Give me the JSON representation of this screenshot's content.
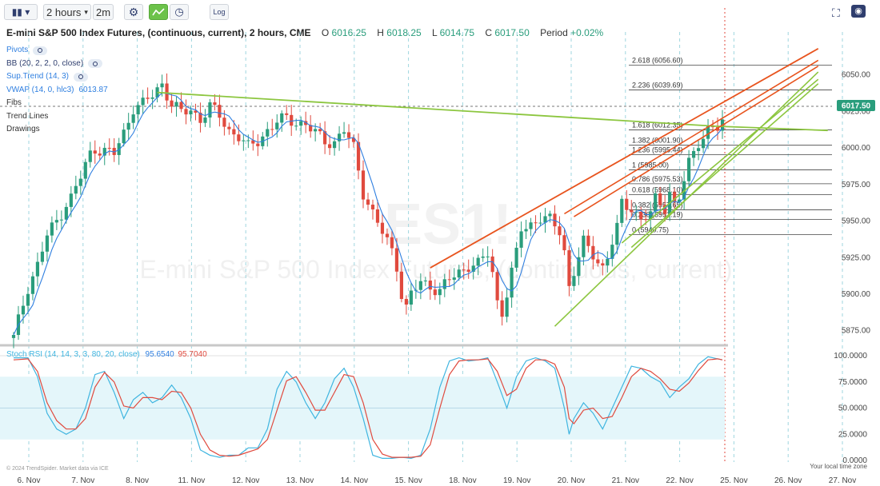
{
  "toolbar": {
    "bars_icon": "candlestick-bars-icon",
    "timeframe": "2 hours",
    "interval": "2m",
    "log_label": "Log"
  },
  "header": {
    "title": "E-mini S&P 500 Index Futures, (continuous, current), 2 hours, CME",
    "open_label": "O",
    "open": "6016.25",
    "high_label": "H",
    "high": "6018.25",
    "low_label": "L",
    "low": "6014.75",
    "close_label": "C",
    "close": "6017.50",
    "period_label": "Period",
    "period": "+0.02%"
  },
  "legend": {
    "pivots": "Pivots",
    "bb": "BB (20, 2, 2, 0, close)",
    "suptrend": "Sup.Trend (14, 3)",
    "vwap": "VWAP (14, 0, hlc3)",
    "vwap_value": "6013.87",
    "fibs": "Fibs",
    "trend_lines": "Trend Lines",
    "drawings": "Drawings"
  },
  "watermark": {
    "symbol": "ES1!",
    "name": "E-mini S&P 500 Index Futures, (continuous, current)"
  },
  "colors": {
    "up": "#2a9d7c",
    "down": "#e04a3e",
    "ma": "#2f7fe0",
    "fib": "#444444",
    "orange": "#e8541e",
    "green": "#8cc63f",
    "stoch_k": "#3fb5e0",
    "stoch_d": "#e04a3e",
    "last_price_bg": "#2a9d7c"
  },
  "rsi": {
    "label": "Stoch RSI (14, 14, 3, 3, 80, 20, close)",
    "k_value": "95.6540",
    "d_value": "95.7040",
    "ticks": [
      "100.0000",
      "75.0000",
      "50.0000",
      "25.0000",
      "0.0000"
    ]
  },
  "footer": {
    "copyright": "© 2024 TrendSpider. Market data via ICE",
    "timezone": "Your local time zone"
  },
  "chart_data": {
    "type": "candlestick",
    "y_ticks": [
      "6050.00",
      "6025.00",
      "6000.00",
      "5975.00",
      "5950.00",
      "5925.00",
      "5900.00",
      "5875.00"
    ],
    "ylim": [
      5865,
      6075
    ],
    "last_price": "6017.50",
    "x_labels": [
      "6. Nov",
      "7. Nov",
      "8. Nov",
      "11. Nov",
      "12. Nov",
      "13. Nov",
      "14. Nov",
      "15. Nov",
      "18. Nov",
      "19. Nov",
      "20. Nov",
      "21. Nov",
      "22. Nov",
      "25. Nov",
      "26. Nov",
      "27. Nov"
    ],
    "fib_levels": [
      {
        "label": "2.618 (6056.60)",
        "price": 6056.6
      },
      {
        "label": "2.236 (6039.69)",
        "price": 6039.69
      },
      {
        "label": "1.618 (6012.35)",
        "price": 6012.35
      },
      {
        "label": "1.382 (6001.90)",
        "price": 6001.9
      },
      {
        "label": "1.236 (5995.44)",
        "price": 5995.44
      },
      {
        "label": "1 (5985.00)",
        "price": 5985.0
      },
      {
        "label": "0.786 (5975.53)",
        "price": 5975.53
      },
      {
        "label": "0.618 (5968.10)",
        "price": 5968.1
      },
      {
        "label": "0.382 (5957.65)",
        "price": 5957.65
      },
      {
        "label": "0.236 (5951.19)",
        "price": 5951.19
      },
      {
        "label": "0 (5940.75)",
        "price": 5940.75
      }
    ],
    "close_path": [
      [
        0,
        5870
      ],
      [
        3,
        5905
      ],
      [
        5,
        5920
      ],
      [
        7,
        5940
      ],
      [
        9,
        5950
      ],
      [
        11,
        5962
      ],
      [
        12,
        5966
      ],
      [
        14,
        5980
      ],
      [
        16,
        5996
      ],
      [
        17,
        6000
      ],
      [
        19,
        5998
      ],
      [
        21,
        5996
      ],
      [
        23,
        6010
      ],
      [
        25,
        6028
      ],
      [
        27,
        6030
      ],
      [
        29,
        6036
      ],
      [
        31,
        6044
      ],
      [
        33,
        6030
      ],
      [
        35,
        6024
      ],
      [
        37,
        6026
      ],
      [
        39,
        6020
      ],
      [
        41,
        6028
      ],
      [
        43,
        6022
      ],
      [
        45,
        6012
      ],
      [
        47,
        6008
      ],
      [
        49,
        6000
      ],
      [
        51,
        6005
      ],
      [
        53,
        6012
      ],
      [
        55,
        6018
      ],
      [
        57,
        6020
      ],
      [
        59,
        6018
      ],
      [
        61,
        6016
      ],
      [
        63,
        6010
      ],
      [
        65,
        6005
      ],
      [
        67,
        6004
      ],
      [
        69,
        6012
      ],
      [
        71,
        6000
      ],
      [
        72,
        5985
      ],
      [
        73,
        5970
      ],
      [
        75,
        5955
      ],
      [
        77,
        5942
      ],
      [
        79,
        5930
      ],
      [
        80,
        5920
      ],
      [
        81,
        5900
      ],
      [
        82,
        5890
      ],
      [
        83,
        5900
      ],
      [
        85,
        5908
      ],
      [
        87,
        5906
      ],
      [
        89,
        5902
      ],
      [
        91,
        5910
      ],
      [
        93,
        5915
      ],
      [
        95,
        5920
      ],
      [
        97,
        5920
      ],
      [
        99,
        5928
      ],
      [
        100,
        5915
      ],
      [
        101,
        5895
      ],
      [
        102,
        5888
      ],
      [
        103,
        5900
      ],
      [
        105,
        5928
      ],
      [
        106,
        5945
      ],
      [
        108,
        5948
      ],
      [
        110,
        5952
      ],
      [
        112,
        5950
      ],
      [
        114,
        5944
      ],
      [
        115,
        5930
      ],
      [
        116,
        5905
      ],
      [
        117,
        5915
      ],
      [
        119,
        5935
      ],
      [
        121,
        5928
      ],
      [
        123,
        5918
      ],
      [
        124,
        5925
      ],
      [
        126,
        5945
      ],
      [
        127,
        5962
      ],
      [
        129,
        5960
      ],
      [
        130,
        5955
      ],
      [
        131,
        5950
      ],
      [
        133,
        5955
      ],
      [
        134,
        5965
      ],
      [
        136,
        5960
      ],
      [
        137,
        5970
      ],
      [
        138,
        5960
      ],
      [
        139,
        5965
      ],
      [
        141,
        5990
      ],
      [
        143,
        6005
      ],
      [
        145,
        6012
      ],
      [
        147,
        6013
      ],
      [
        148,
        6018
      ]
    ],
    "rsi_k_path": [
      [
        0,
        98
      ],
      [
        3,
        98
      ],
      [
        5,
        80
      ],
      [
        7,
        45
      ],
      [
        9,
        30
      ],
      [
        11,
        25
      ],
      [
        13,
        30
      ],
      [
        15,
        50
      ],
      [
        17,
        82
      ],
      [
        19,
        85
      ],
      [
        21,
        65
      ],
      [
        23,
        40
      ],
      [
        25,
        58
      ],
      [
        27,
        65
      ],
      [
        29,
        55
      ],
      [
        31,
        60
      ],
      [
        33,
        72
      ],
      [
        35,
        60
      ],
      [
        37,
        40
      ],
      [
        39,
        10
      ],
      [
        41,
        5
      ],
      [
        43,
        3
      ],
      [
        45,
        5
      ],
      [
        47,
        5
      ],
      [
        49,
        12
      ],
      [
        51,
        12
      ],
      [
        53,
        30
      ],
      [
        55,
        68
      ],
      [
        57,
        85
      ],
      [
        59,
        75
      ],
      [
        61,
        55
      ],
      [
        63,
        40
      ],
      [
        65,
        55
      ],
      [
        67,
        78
      ],
      [
        69,
        88
      ],
      [
        71,
        70
      ],
      [
        73,
        40
      ],
      [
        75,
        5
      ],
      [
        77,
        2
      ],
      [
        79,
        2
      ],
      [
        81,
        3
      ],
      [
        83,
        2
      ],
      [
        85,
        5
      ],
      [
        87,
        30
      ],
      [
        89,
        70
      ],
      [
        91,
        95
      ],
      [
        93,
        98
      ],
      [
        95,
        95
      ],
      [
        97,
        96
      ],
      [
        99,
        98
      ],
      [
        101,
        75
      ],
      [
        103,
        50
      ],
      [
        105,
        80
      ],
      [
        107,
        95
      ],
      [
        109,
        98
      ],
      [
        111,
        95
      ],
      [
        113,
        88
      ],
      [
        115,
        50
      ],
      [
        116,
        25
      ],
      [
        117,
        40
      ],
      [
        119,
        55
      ],
      [
        121,
        45
      ],
      [
        123,
        30
      ],
      [
        125,
        50
      ],
      [
        127,
        70
      ],
      [
        129,
        90
      ],
      [
        131,
        88
      ],
      [
        133,
        80
      ],
      [
        135,
        75
      ],
      [
        137,
        60
      ],
      [
        139,
        70
      ],
      [
        141,
        78
      ],
      [
        143,
        92
      ],
      [
        145,
        99
      ],
      [
        147,
        97
      ],
      [
        148,
        96
      ]
    ],
    "rsi_d_path": [
      [
        0,
        96
      ],
      [
        3,
        97
      ],
      [
        5,
        85
      ],
      [
        7,
        55
      ],
      [
        9,
        38
      ],
      [
        11,
        30
      ],
      [
        13,
        30
      ],
      [
        15,
        40
      ],
      [
        17,
        70
      ],
      [
        19,
        84
      ],
      [
        21,
        75
      ],
      [
        23,
        52
      ],
      [
        25,
        50
      ],
      [
        27,
        60
      ],
      [
        29,
        60
      ],
      [
        31,
        58
      ],
      [
        33,
        66
      ],
      [
        35,
        65
      ],
      [
        37,
        50
      ],
      [
        39,
        25
      ],
      [
        41,
        10
      ],
      [
        43,
        5
      ],
      [
        45,
        4
      ],
      [
        47,
        5
      ],
      [
        49,
        8
      ],
      [
        51,
        11
      ],
      [
        53,
        20
      ],
      [
        55,
        48
      ],
      [
        57,
        76
      ],
      [
        59,
        80
      ],
      [
        61,
        65
      ],
      [
        63,
        48
      ],
      [
        65,
        48
      ],
      [
        67,
        65
      ],
      [
        69,
        82
      ],
      [
        71,
        80
      ],
      [
        73,
        55
      ],
      [
        75,
        20
      ],
      [
        77,
        6
      ],
      [
        79,
        3
      ],
      [
        81,
        3
      ],
      [
        83,
        3
      ],
      [
        85,
        4
      ],
      [
        87,
        15
      ],
      [
        89,
        50
      ],
      [
        91,
        82
      ],
      [
        93,
        95
      ],
      [
        95,
        96
      ],
      [
        97,
        96
      ],
      [
        99,
        97
      ],
      [
        101,
        85
      ],
      [
        103,
        62
      ],
      [
        105,
        68
      ],
      [
        107,
        88
      ],
      [
        109,
        96
      ],
      [
        111,
        96
      ],
      [
        113,
        92
      ],
      [
        115,
        70
      ],
      [
        116,
        40
      ],
      [
        117,
        35
      ],
      [
        119,
        48
      ],
      [
        121,
        50
      ],
      [
        123,
        40
      ],
      [
        125,
        42
      ],
      [
        127,
        60
      ],
      [
        129,
        80
      ],
      [
        131,
        88
      ],
      [
        133,
        85
      ],
      [
        135,
        78
      ],
      [
        137,
        68
      ],
      [
        139,
        66
      ],
      [
        141,
        74
      ],
      [
        143,
        86
      ],
      [
        145,
        96
      ],
      [
        147,
        97
      ],
      [
        148,
        96
      ]
    ]
  }
}
